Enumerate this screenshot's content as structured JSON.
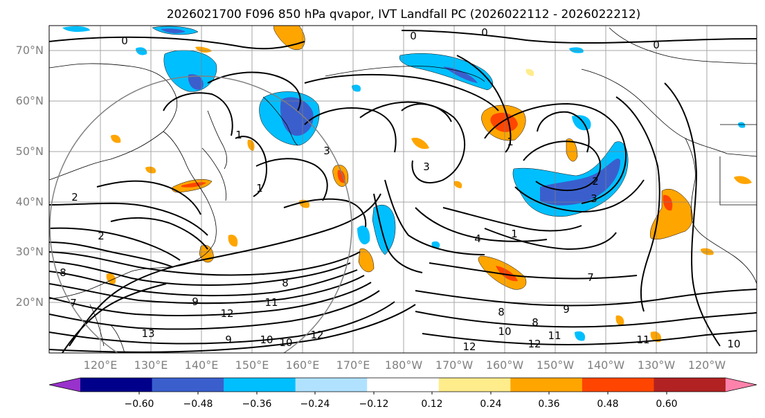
{
  "title": "2026021700 F096 850 hPa qvapor, IVT Landfall PC (2026022112 - 2026022212)",
  "lat_labels": [
    "70°N",
    "60°N",
    "50°N",
    "40°N",
    "30°N",
    "20°N"
  ],
  "lon_labels": [
    "120°E",
    "130°E",
    "140°E",
    "150°E",
    "160°E",
    "170°E",
    "180°W",
    "170°W",
    "160°W",
    "150°W",
    "140°W",
    "130°W",
    "120°W"
  ],
  "colorbar": {
    "colors": [
      "#9932cc",
      "#00008b",
      "#3a5fcd",
      "#00bfff",
      "#b0e2ff",
      "#ffffff",
      "#ffec8b",
      "#ffa500",
      "#ff4500",
      "#b22222",
      "#ff82ab"
    ],
    "tick_labels": [
      "−0.60",
      "−0.48",
      "−0.36",
      "−0.24",
      "−0.12",
      "0.12",
      "0.24",
      "0.36",
      "0.48",
      "0.60"
    ],
    "extend": "both"
  },
  "contour_labels": [
    "0",
    "0",
    "0",
    "0",
    "1",
    "1",
    "1",
    "1",
    "2",
    "2",
    "2",
    "3",
    "3",
    "3",
    "4",
    "7",
    "7",
    "8",
    "8",
    "8",
    "8",
    "9",
    "9",
    "9",
    "10",
    "10",
    "10",
    "10",
    "11",
    "11",
    "11",
    "12",
    "12",
    "12",
    "12",
    "13"
  ]
}
